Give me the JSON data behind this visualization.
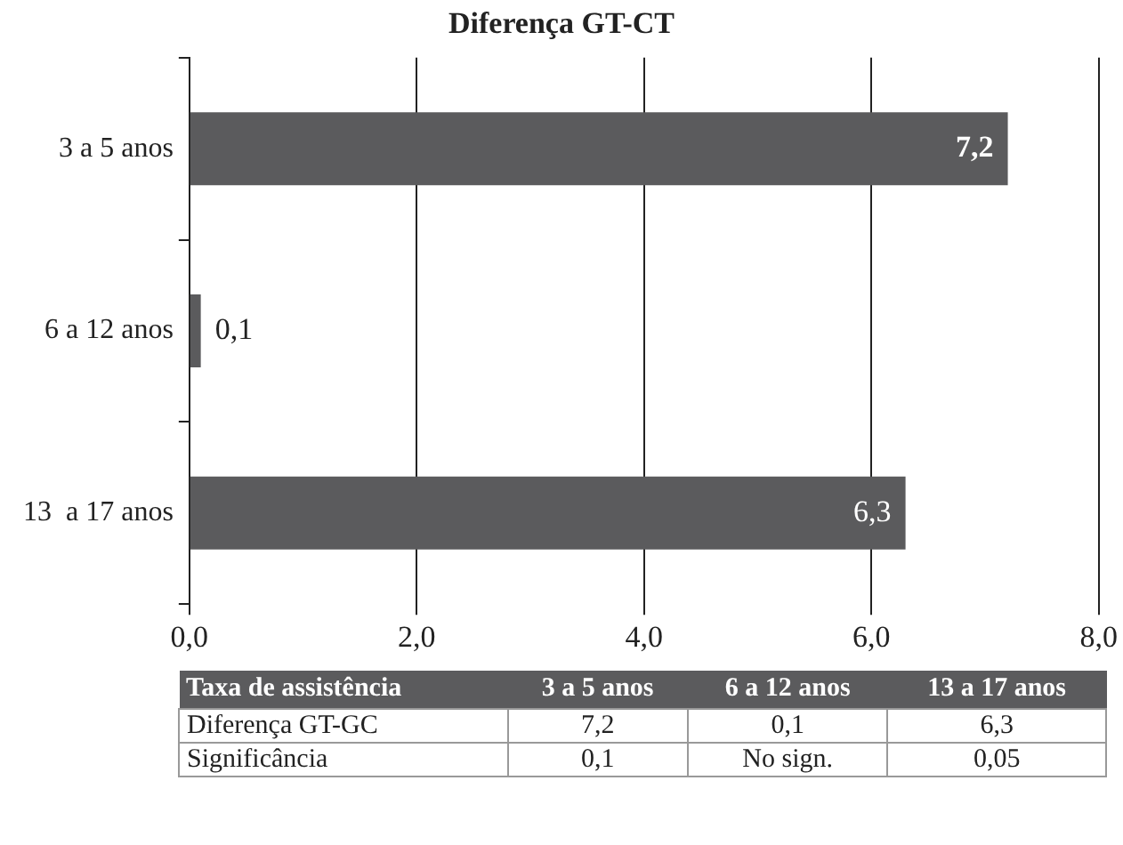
{
  "chart_data": {
    "type": "bar",
    "title": "Diferença GT-CT",
    "orientation": "horizontal",
    "categories": [
      "3 a 5 anos",
      "6 a 12 anos",
      "13  a 17 anos"
    ],
    "values": [
      7.2,
      0.1,
      6.3
    ],
    "color": "#5b5b5d",
    "value_labels": [
      "7,2",
      "0,1",
      "6,3"
    ],
    "xlim": [
      0,
      8
    ],
    "xticks": [
      {
        "value": 0,
        "label": "0,0"
      },
      {
        "value": 2,
        "label": "2,0"
      },
      {
        "value": 4,
        "label": "4,0"
      },
      {
        "value": 6,
        "label": "6,0"
      },
      {
        "value": 8,
        "label": "8,0"
      }
    ],
    "grid": "x",
    "legend": false,
    "annotations": [
      "Taxa de assistência",
      "Diferença GT-GC",
      "Significância",
      "0,1",
      "No sign.",
      "0,05"
    ]
  }
}
